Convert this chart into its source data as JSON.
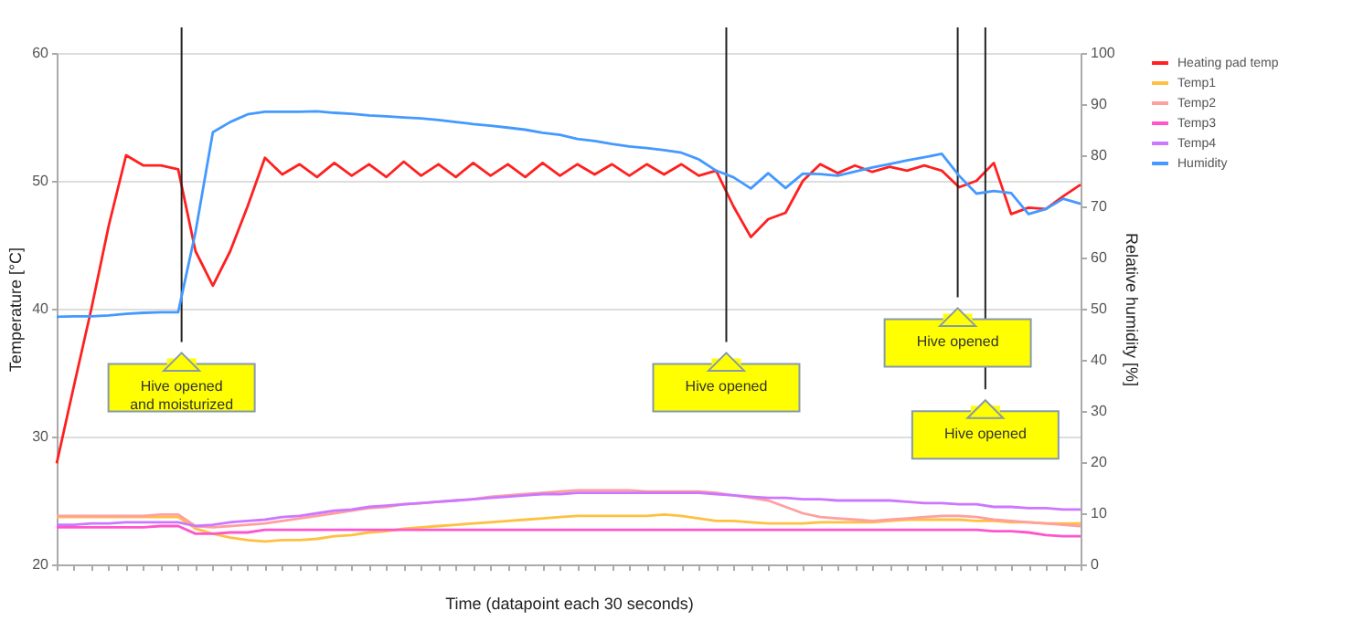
{
  "chart_data": {
    "type": "line",
    "xlabel": "Time (datapoint each 30 seconds)",
    "ylabel": "Temperature [°C]",
    "y2label": "Relative humidity [%]",
    "categories": [
      null,
      null,
      null,
      null,
      null,
      null,
      null,
      null,
      null,
      null,
      null,
      null,
      null,
      null,
      null,
      null,
      null,
      null,
      null,
      null,
      null,
      null,
      null,
      null,
      null,
      null,
      null,
      null,
      null,
      null,
      null,
      null,
      null,
      null,
      null,
      null,
      null,
      null,
      null,
      null,
      null,
      null,
      null,
      null,
      null,
      null,
      null,
      null,
      null,
      null,
      null,
      null,
      null,
      null,
      null,
      null,
      null,
      null,
      null,
      null
    ],
    "ylim": [
      20,
      60
    ],
    "yticks": [
      20,
      30,
      40,
      50,
      60
    ],
    "y2lim": [
      0,
      100
    ],
    "y2ticks": [
      0,
      10,
      20,
      30,
      40,
      50,
      60,
      70,
      80,
      90,
      100
    ],
    "grid": "y",
    "legend": "right",
    "series": [
      {
        "name": "Heating pad temp",
        "color": "#ff2020",
        "values": [
          27.9,
          34,
          40,
          46.5,
          52,
          51.2,
          51.2,
          50.9,
          44.5,
          41.8,
          44.5,
          48,
          51.8,
          50.5,
          51.3,
          50.3,
          51.4,
          50.4,
          51.3,
          50.3,
          51.5,
          50.4,
          51.3,
          50.3,
          51.4,
          50.4,
          51.3,
          50.3,
          51.4,
          50.4,
          51.3,
          50.5,
          51.3,
          50.4,
          51.3,
          50.5,
          51.3,
          50.4,
          50.8,
          48,
          45.6,
          47,
          47.5,
          50,
          51.3,
          50.6,
          51.2,
          50.7,
          51.1,
          50.8,
          51.2,
          50.8,
          49.5,
          50,
          51.4,
          47.4,
          47.9,
          47.8,
          48.8,
          49.7
        ]
      },
      {
        "name": "Temp1",
        "color": "#ffc040",
        "values": [
          23.7,
          23.7,
          23.7,
          23.7,
          23.7,
          23.7,
          23.7,
          23.7,
          22.8,
          22.4,
          22.1,
          21.9,
          21.8,
          21.9,
          21.9,
          22.0,
          22.2,
          22.3,
          22.5,
          22.6,
          22.8,
          22.9,
          23.0,
          23.1,
          23.2,
          23.3,
          23.4,
          23.5,
          23.6,
          23.7,
          23.8,
          23.8,
          23.8,
          23.8,
          23.8,
          23.9,
          23.8,
          23.6,
          23.4,
          23.4,
          23.3,
          23.2,
          23.2,
          23.2,
          23.3,
          23.3,
          23.3,
          23.3,
          23.4,
          23.5,
          23.5,
          23.5,
          23.5,
          23.4,
          23.4,
          23.3,
          23.3,
          23.2,
          23.2,
          23.2
        ]
      },
      {
        "name": "Temp2",
        "color": "#ff9f9f",
        "values": [
          23.8,
          23.8,
          23.8,
          23.8,
          23.8,
          23.8,
          23.9,
          23.9,
          23.0,
          22.9,
          23.0,
          23.1,
          23.2,
          23.4,
          23.6,
          23.8,
          24.0,
          24.2,
          24.4,
          24.5,
          24.7,
          24.8,
          24.9,
          25.0,
          25.1,
          25.3,
          25.4,
          25.5,
          25.6,
          25.7,
          25.8,
          25.8,
          25.8,
          25.8,
          25.7,
          25.7,
          25.7,
          25.7,
          25.6,
          25.4,
          25.2,
          25.0,
          24.5,
          24.0,
          23.7,
          23.6,
          23.5,
          23.4,
          23.5,
          23.6,
          23.7,
          23.8,
          23.8,
          23.7,
          23.5,
          23.4,
          23.3,
          23.2,
          23.1,
          23.0
        ]
      },
      {
        "name": "Temp3",
        "color": "#ff55cc",
        "values": [
          22.9,
          22.9,
          22.9,
          22.9,
          22.9,
          22.9,
          23.0,
          23.0,
          22.4,
          22.4,
          22.5,
          22.5,
          22.7,
          22.7,
          22.7,
          22.7,
          22.7,
          22.7,
          22.7,
          22.7,
          22.7,
          22.7,
          22.7,
          22.7,
          22.7,
          22.7,
          22.7,
          22.7,
          22.7,
          22.7,
          22.7,
          22.7,
          22.7,
          22.7,
          22.7,
          22.7,
          22.7,
          22.7,
          22.7,
          22.7,
          22.7,
          22.7,
          22.7,
          22.7,
          22.7,
          22.7,
          22.7,
          22.7,
          22.7,
          22.7,
          22.7,
          22.7,
          22.7,
          22.7,
          22.6,
          22.6,
          22.5,
          22.3,
          22.2,
          22.2
        ]
      },
      {
        "name": "Temp4",
        "color": "#cc77ff",
        "values": [
          23.1,
          23.1,
          23.2,
          23.2,
          23.3,
          23.3,
          23.3,
          23.3,
          23.0,
          23.1,
          23.3,
          23.4,
          23.5,
          23.7,
          23.8,
          24.0,
          24.2,
          24.3,
          24.5,
          24.6,
          24.7,
          24.8,
          24.9,
          25.0,
          25.1,
          25.2,
          25.3,
          25.4,
          25.5,
          25.5,
          25.6,
          25.6,
          25.6,
          25.6,
          25.6,
          25.6,
          25.6,
          25.6,
          25.5,
          25.4,
          25.3,
          25.2,
          25.2,
          25.1,
          25.1,
          25.0,
          25.0,
          25.0,
          25.0,
          24.9,
          24.8,
          24.8,
          24.7,
          24.7,
          24.5,
          24.5,
          24.4,
          24.4,
          24.3,
          24.3
        ]
      },
      {
        "name": "Humidity",
        "color": "#4499ff",
        "axis": "y2",
        "values": [
          48.4,
          48.5,
          48.5,
          48.7,
          49,
          49.2,
          49.3,
          49.3,
          65,
          84.5,
          86.5,
          88,
          88.5,
          88.5,
          88.5,
          88.6,
          88.3,
          88.1,
          87.8,
          87.6,
          87.4,
          87.2,
          86.9,
          86.5,
          86.1,
          85.8,
          85.4,
          85,
          84.4,
          84,
          83.2,
          82.8,
          82.2,
          81.7,
          81.4,
          81,
          80.5,
          79.2,
          77,
          75.7,
          73.5,
          76.5,
          73.6,
          76.4,
          76.3,
          76,
          76.8,
          77.6,
          78.3,
          79,
          79.6,
          80.3,
          76,
          72.5,
          73,
          72.6,
          68.5,
          69.5,
          71.5,
          70.5
        ]
      }
    ],
    "annotations": [
      "Hive opened\nand moisturized",
      "Hive opened",
      "Hive opened",
      "Hive opened"
    ]
  }
}
